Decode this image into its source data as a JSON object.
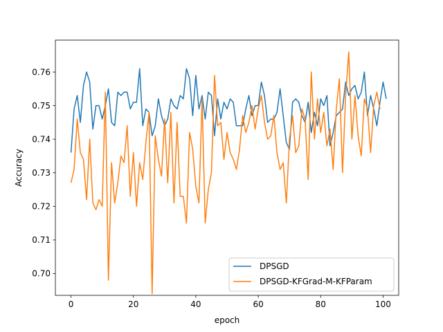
{
  "chart_data": {
    "type": "line",
    "title": "",
    "xlabel": "epoch",
    "ylabel": "Accuracy",
    "xlim": [
      -5,
      105
    ],
    "ylim": [
      0.6935,
      0.7695
    ],
    "xticks": [
      0,
      20,
      40,
      60,
      80,
      100
    ],
    "yticks": [
      0.7,
      0.71,
      0.72,
      0.73,
      0.74,
      0.75,
      0.76
    ],
    "xtick_labels": [
      "0",
      "20",
      "40",
      "60",
      "80",
      "100"
    ],
    "ytick_labels": [
      "0.70",
      "0.71",
      "0.72",
      "0.73",
      "0.74",
      "0.75",
      "0.76"
    ],
    "grid": false,
    "legend": "lower-right",
    "series": [
      {
        "name": "DPSGD",
        "color": "#1f77b4",
        "values": [
          0.736,
          0.749,
          0.753,
          0.745,
          0.756,
          0.76,
          0.757,
          0.743,
          0.75,
          0.75,
          0.746,
          0.75,
          0.755,
          0.745,
          0.744,
          0.754,
          0.753,
          0.754,
          0.754,
          0.749,
          0.751,
          0.751,
          0.761,
          0.744,
          0.749,
          0.748,
          0.741,
          0.744,
          0.752,
          0.747,
          0.744,
          0.746,
          0.752,
          0.75,
          0.749,
          0.753,
          0.752,
          0.761,
          0.758,
          0.747,
          0.759,
          0.749,
          0.753,
          0.746,
          0.754,
          0.753,
          0.741,
          0.752,
          0.746,
          0.751,
          0.749,
          0.752,
          0.751,
          0.744,
          0.744,
          0.744,
          0.749,
          0.753,
          0.747,
          0.75,
          0.75,
          0.757,
          0.753,
          0.745,
          0.746,
          0.746,
          0.748,
          0.755,
          0.747,
          0.739,
          0.737,
          0.751,
          0.752,
          0.751,
          0.747,
          0.745,
          0.751,
          0.742,
          0.748,
          0.744,
          0.752,
          0.75,
          0.753,
          0.738,
          0.742,
          0.747,
          0.748,
          0.749,
          0.757,
          0.753,
          0.755,
          0.756,
          0.752,
          0.754,
          0.76,
          0.747,
          0.753,
          0.749,
          0.744,
          0.751,
          0.757,
          0.752
        ]
      },
      {
        "name": "DPSGD-KFGrad-M-KFParam",
        "color": "#ff7f0e",
        "values": [
          0.727,
          0.731,
          0.746,
          0.736,
          0.734,
          0.722,
          0.74,
          0.721,
          0.719,
          0.722,
          0.72,
          0.754,
          0.698,
          0.733,
          0.721,
          0.727,
          0.735,
          0.733,
          0.744,
          0.723,
          0.736,
          0.72,
          0.733,
          0.728,
          0.739,
          0.748,
          0.694,
          0.741,
          0.734,
          0.729,
          0.746,
          0.727,
          0.748,
          0.721,
          0.745,
          0.723,
          0.723,
          0.715,
          0.742,
          0.737,
          0.726,
          0.721,
          0.752,
          0.715,
          0.725,
          0.73,
          0.759,
          0.744,
          0.745,
          0.734,
          0.742,
          0.736,
          0.734,
          0.731,
          0.737,
          0.747,
          0.742,
          0.745,
          0.75,
          0.743,
          0.749,
          0.753,
          0.745,
          0.74,
          0.741,
          0.747,
          0.736,
          0.731,
          0.733,
          0.721,
          0.74,
          0.747,
          0.736,
          0.738,
          0.749,
          0.746,
          0.728,
          0.76,
          0.74,
          0.752,
          0.742,
          0.748,
          0.738,
          0.743,
          0.731,
          0.749,
          0.758,
          0.73,
          0.753,
          0.766,
          0.74,
          0.753,
          0.741,
          0.735,
          0.752,
          0.749,
          0.736,
          0.75,
          0.754,
          0.749
        ]
      }
    ]
  }
}
